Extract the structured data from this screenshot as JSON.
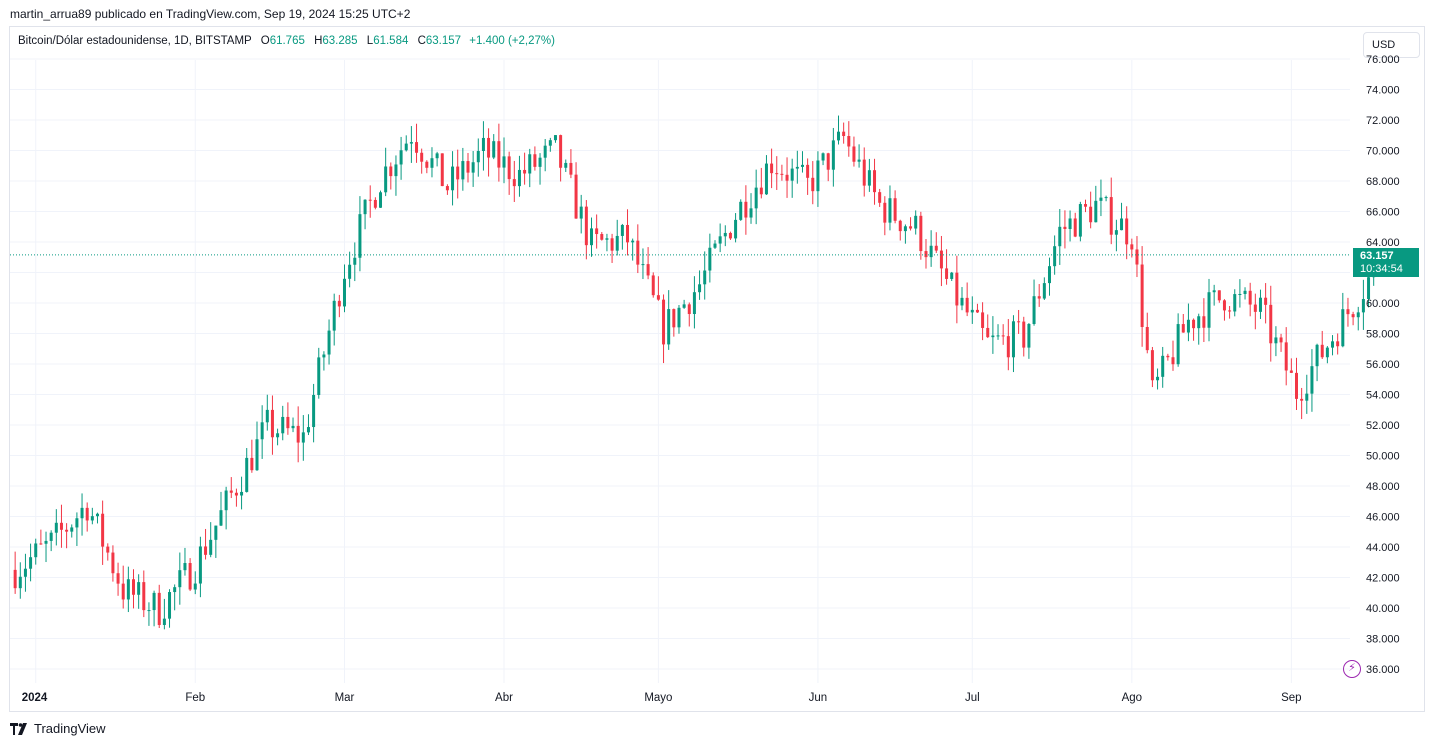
{
  "header": {
    "published_by": "martin_arrua89 publicado en TradingView.com, Sep 19, 2024 15:25 UTC+2"
  },
  "legend": {
    "symbol": "Bitcoin/Dólar estadounidense, 1D, BITSTAMP",
    "open_label": "O",
    "open": "61.765",
    "high_label": "H",
    "high": "63.285",
    "low_label": "L",
    "low": "61.584",
    "close_label": "C",
    "close": "63.157",
    "change": "+1.400 (+2,27%)"
  },
  "currency": "USD",
  "last_price": {
    "value": "63.157",
    "countdown": "10:34:54"
  },
  "footer": {
    "brand": "TradingView"
  },
  "colors": {
    "up": "#089981",
    "down": "#f23645",
    "grid": "#f0f3fa",
    "accent": "#9c27b0"
  },
  "chart_data": {
    "type": "candlestick",
    "title": "",
    "y_axis": {
      "ticks": [
        "36.000",
        "38.000",
        "40.000",
        "42.000",
        "44.000",
        "46.000",
        "48.000",
        "50.000",
        "52.000",
        "54.000",
        "56.000",
        "58.000",
        "60.000",
        "62.000",
        "64.000",
        "66.000",
        "68.000",
        "70.000",
        "72.000",
        "74.000",
        "76.000"
      ],
      "tick_values": [
        36000,
        38000,
        40000,
        42000,
        44000,
        46000,
        48000,
        50000,
        52000,
        54000,
        56000,
        58000,
        60000,
        62000,
        64000,
        66000,
        68000,
        70000,
        72000,
        74000,
        76000
      ],
      "range": [
        35000,
        77000
      ]
    },
    "x_axis": {
      "labels": [
        "2024",
        "Feb",
        "Mar",
        "Abr",
        "Mayo",
        "Jun",
        "Jul",
        "Ago",
        "Sep"
      ],
      "label_dates": [
        "2024-01-01",
        "2024-02-01",
        "2024-03-01",
        "2024-04-01",
        "2024-05-01",
        "2024-06-01",
        "2024-07-01",
        "2024-08-01",
        "2024-09-01"
      ],
      "range": [
        "2023-12-27",
        "2024-09-26"
      ]
    },
    "last_price_line": 63157,
    "weekly_closes": {
      "dates": [
        "2023-12-28",
        "2024-01-04",
        "2024-01-11",
        "2024-01-18",
        "2024-01-25",
        "2024-02-01",
        "2024-02-08",
        "2024-02-15",
        "2024-02-22",
        "2024-03-01",
        "2024-03-08",
        "2024-03-14",
        "2024-03-21",
        "2024-03-28",
        "2024-04-04",
        "2024-04-11",
        "2024-04-18",
        "2024-04-25",
        "2024-05-02",
        "2024-05-09",
        "2024-05-16",
        "2024-05-23",
        "2024-05-30",
        "2024-06-06",
        "2024-06-13",
        "2024-06-20",
        "2024-06-27",
        "2024-07-04",
        "2024-07-11",
        "2024-07-18",
        "2024-07-25",
        "2024-08-01",
        "2024-08-05",
        "2024-08-12",
        "2024-08-19",
        "2024-08-26",
        "2024-09-02",
        "2024-09-09",
        "2024-09-19"
      ],
      "close": [
        42500,
        44200,
        46800,
        41200,
        39900,
        42800,
        47400,
        51900,
        51200,
        62300,
        68200,
        71200,
        67600,
        69900,
        68400,
        70000,
        63800,
        64200,
        58300,
        61200,
        65800,
        69300,
        67700,
        70800,
        66400,
        64900,
        60800,
        57300,
        57800,
        64700,
        66400,
        64500,
        54000,
        58800,
        60500,
        59500,
        54200,
        57800,
        63157
      ]
    }
  }
}
